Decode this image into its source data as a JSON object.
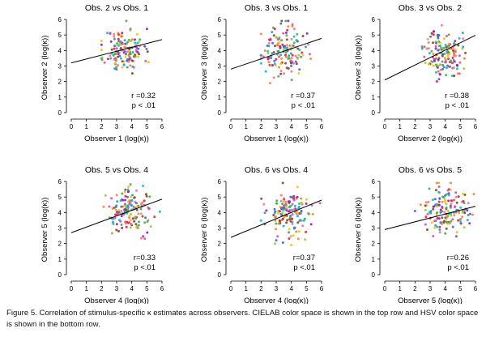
{
  "caption": {
    "part1": "Figure 5. Correlation of stimulus-specific ",
    "kappa": "κ",
    "part2": " estimates across observers. CIELAB color space is shown in the top row and HSV color space is shown in the bottom row."
  },
  "chart_data": [
    {
      "type": "scatter",
      "title": "Obs. 2 vs Obs. 1",
      "xlabel": "Observer 1 (log(κ))",
      "ylabel": "Observer 2 (log(κ))",
      "xlim": [
        0,
        6
      ],
      "ylim": [
        0,
        6
      ],
      "xticks": [
        "0",
        "1",
        "2",
        "3",
        "4",
        "5",
        "6"
      ],
      "yticks": [
        "0",
        "1",
        "2",
        "3",
        "4",
        "5",
        "6"
      ],
      "fit_line": {
        "intercept": 3.2,
        "slope": 0.25
      },
      "center": [
        3.5,
        4.0
      ],
      "spread": [
        0.65,
        0.7
      ],
      "r_text": "r =0.32",
      "p_text": "p < .01",
      "seed": 11
    },
    {
      "type": "scatter",
      "title": "Obs. 3 vs Obs. 1",
      "xlabel": "Observer 1 (log(κ))",
      "ylabel": "Observer 3 (log(κ))",
      "xlim": [
        0,
        6
      ],
      "ylim": [
        0,
        6
      ],
      "xticks": [
        "0",
        "1",
        "2",
        "3",
        "4",
        "5",
        "6"
      ],
      "yticks": [
        "0",
        "1",
        "2",
        "3",
        "4",
        "5",
        "6"
      ],
      "fit_line": {
        "intercept": 2.8,
        "slope": 0.33
      },
      "center": [
        3.4,
        3.9
      ],
      "spread": [
        0.75,
        0.8
      ],
      "r_text": "r =0.37",
      "p_text": "p < .01",
      "seed": 23
    },
    {
      "type": "scatter",
      "title": "Obs. 3 vs Obs. 2",
      "xlabel": "Observer 2 (log(κ))",
      "ylabel": "Observer 3 (log(κ))",
      "xlim": [
        0,
        6
      ],
      "ylim": [
        0,
        6
      ],
      "xticks": [
        "0",
        "1",
        "2",
        "3",
        "4",
        "5",
        "6"
      ],
      "yticks": [
        "0",
        "1",
        "2",
        "3",
        "4",
        "5",
        "6"
      ],
      "fit_line": {
        "intercept": 2.1,
        "slope": 0.48
      },
      "center": [
        3.9,
        3.8
      ],
      "spread": [
        0.6,
        0.75
      ],
      "r_text": "r =0.38",
      "p_text": "p < .01",
      "seed": 37
    },
    {
      "type": "scatter",
      "title": "Obs. 5 vs Obs. 4",
      "xlabel": "Observer 4 (log(κ))",
      "ylabel": "Observer 5 (log(κ))",
      "xlim": [
        0,
        6
      ],
      "ylim": [
        0,
        6
      ],
      "xticks": [
        "0",
        "1",
        "2",
        "3",
        "4",
        "5",
        "6"
      ],
      "yticks": [
        "0",
        "1",
        "2",
        "3",
        "4",
        "5",
        "6"
      ],
      "fit_line": {
        "intercept": 2.7,
        "slope": 0.36
      },
      "center": [
        3.9,
        4.1
      ],
      "spread": [
        0.75,
        0.7
      ],
      "r_text": "r=0.33",
      "p_text": "p <.01",
      "seed": 41
    },
    {
      "type": "scatter",
      "title": "Obs. 6 vs Obs. 4",
      "xlabel": "Observer 4 (log(κ))",
      "ylabel": "Observer 6 (log(κ))",
      "xlim": [
        0,
        6
      ],
      "ylim": [
        0,
        6
      ],
      "xticks": [
        "0",
        "1",
        "2",
        "3",
        "4",
        "5",
        "6"
      ],
      "yticks": [
        "0",
        "1",
        "2",
        "3",
        "4",
        "5",
        "6"
      ],
      "fit_line": {
        "intercept": 2.4,
        "slope": 0.4
      },
      "center": [
        3.9,
        3.9
      ],
      "spread": [
        0.75,
        0.8
      ],
      "r_text": "r=0.37",
      "p_text": "p <.01",
      "seed": 53
    },
    {
      "type": "scatter",
      "title": "Obs. 6 vs Obs. 5",
      "xlabel": "Observer 5 (log(κ))",
      "ylabel": "Observer 6 (log(κ))",
      "xlim": [
        0,
        6
      ],
      "ylim": [
        0,
        6
      ],
      "xticks": [
        "0",
        "1",
        "2",
        "3",
        "4",
        "5",
        "6"
      ],
      "yticks": [
        "0",
        "1",
        "2",
        "3",
        "4",
        "5",
        "6"
      ],
      "fit_line": {
        "intercept": 2.9,
        "slope": 0.25
      },
      "center": [
        4.0,
        4.0
      ],
      "spread": [
        0.75,
        0.75
      ],
      "r_text": "r=0.26",
      "p_text": "p <.01",
      "seed": 67
    }
  ],
  "point_colors": [
    "#e6194b",
    "#f58231",
    "#ffbf00",
    "#3cb44b",
    "#2e9e9e",
    "#4363d8",
    "#911eb4",
    "#e04ab0",
    "#9acd32",
    "#8b4513",
    "#00bcd4",
    "#ff6f91"
  ]
}
